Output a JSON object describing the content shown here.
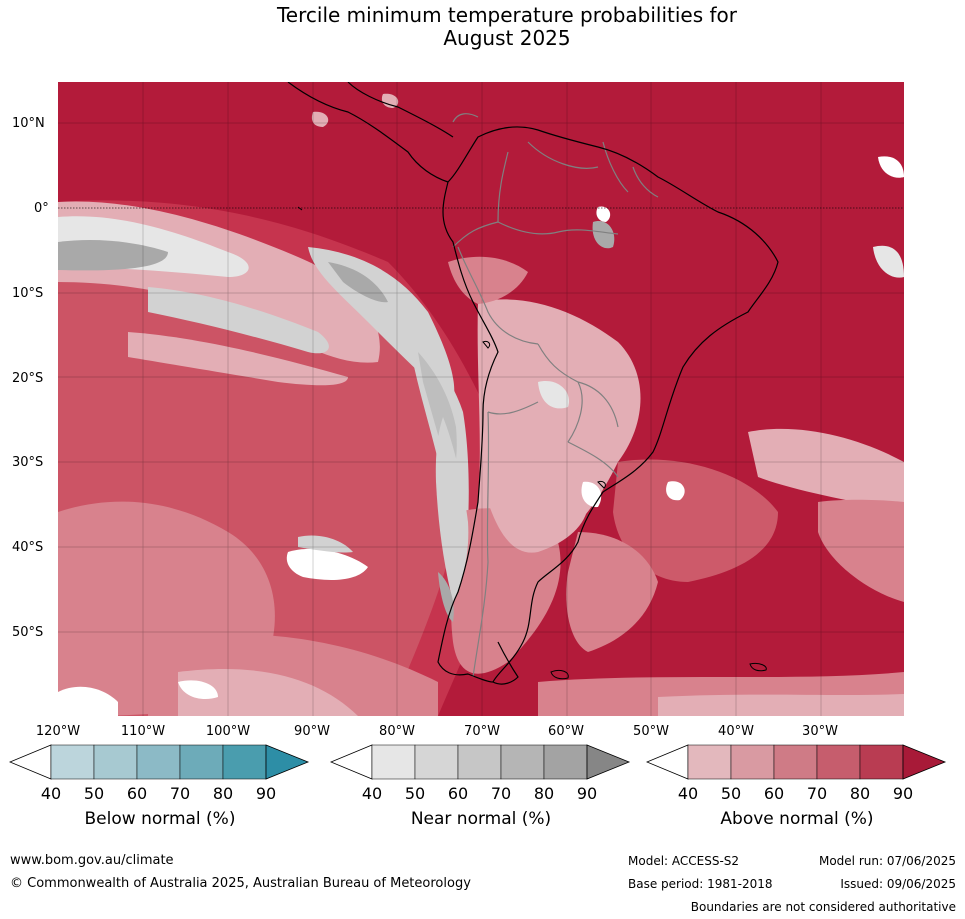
{
  "title_line1": "Tercile minimum temperature probabilities for",
  "title_line2": "August 2025",
  "lat_labels": [
    "10°N",
    "0°",
    "10°S",
    "20°S",
    "30°S",
    "40°S",
    "50°S"
  ],
  "lon_labels": [
    "120°W",
    "110°W",
    "100°W",
    "90°W",
    "80°W",
    "70°W",
    "60°W",
    "50°W",
    "40°W",
    "30°W"
  ],
  "colors": {
    "ocean_above_high": "#b31b3a",
    "above_80": "#c6344e",
    "above_70": "#cd5a6a",
    "above_60": "#d8828d",
    "above_50": "#e3aeb5",
    "near_50": "#e6e6e6",
    "near_60": "#d2d2d2",
    "near_70": "#bebebe",
    "near_80": "#a9a9a9",
    "coast": "#000000",
    "border": "#808080"
  },
  "colorbars": [
    {
      "label": "Below normal (%)",
      "ticks": [
        "40",
        "50",
        "60",
        "70",
        "80",
        "90"
      ],
      "colors": [
        "#ffffff",
        "#bcd5dc",
        "#a7c9d1",
        "#8cbac6",
        "#6dabb9",
        "#4a9dae",
        "#2d8ea6"
      ]
    },
    {
      "label": "Near normal (%)",
      "ticks": [
        "40",
        "50",
        "60",
        "70",
        "80",
        "90"
      ],
      "colors": [
        "#ffffff",
        "#e6e6e6",
        "#d6d6d6",
        "#c6c6c6",
        "#b5b5b5",
        "#a3a3a3",
        "#868686"
      ]
    },
    {
      "label": "Above normal (%)",
      "ticks": [
        "40",
        "50",
        "60",
        "70",
        "80",
        "90"
      ],
      "colors": [
        "#ffffff",
        "#e3b8bd",
        "#d99aa2",
        "#cf7b86",
        "#c65d6d",
        "#b93c52",
        "#a81a38"
      ]
    }
  ],
  "footer": {
    "website": "www.bom.gov.au/climate",
    "copyright": "© Commonwealth of Australia 2025, Australian Bureau of Meteorology",
    "model": "Model: ACCESS-S2",
    "base_period": "Base period: 1981-2018",
    "model_run": "Model run: 07/06/2025",
    "issued": "Issued: 09/06/2025",
    "disclaimer": "Boundaries are not considered authoritative"
  }
}
